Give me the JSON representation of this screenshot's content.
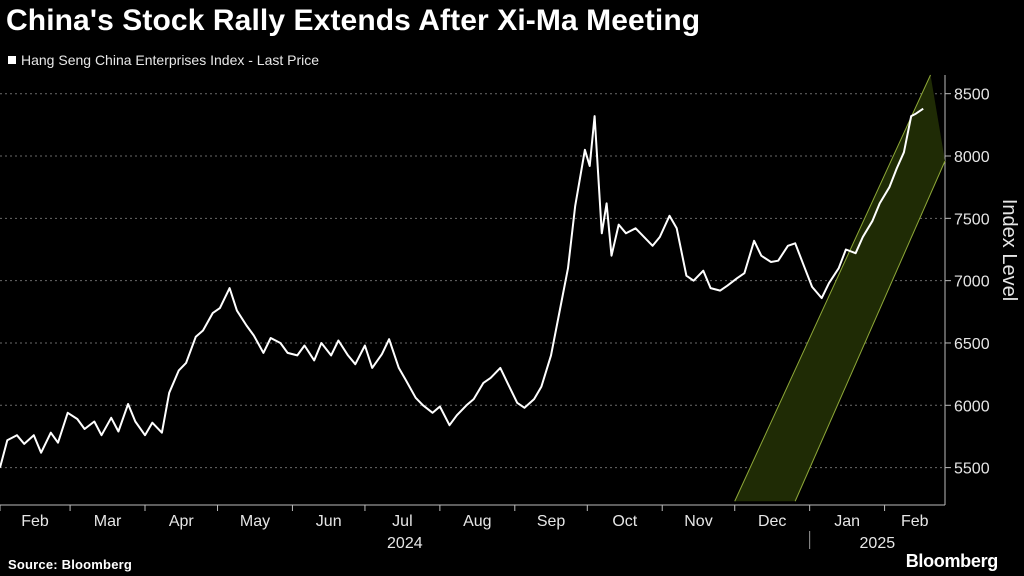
{
  "title": "China's Stock Rally Extends After Xi-Ma Meeting",
  "legend": {
    "label": "Hang Seng China Enterprises Index - Last Price"
  },
  "source": "Source: Bloomberg",
  "brand": "Bloomberg",
  "chart_data": {
    "type": "line",
    "ylabel": "Index Level",
    "ylim": [
      5200,
      8650
    ],
    "y_ticks": [
      5500,
      6000,
      6500,
      7000,
      7500,
      8000,
      8500
    ],
    "x_months": [
      "Feb",
      "Mar",
      "Apr",
      "May",
      "Jun",
      "Jul",
      "Aug",
      "Sep",
      "Oct",
      "Nov",
      "Dec",
      "Jan",
      "Feb"
    ],
    "x_years": [
      "2024",
      "2025"
    ],
    "grid": "horizontal-dashed",
    "line_color": "#ffffff",
    "channel_color": "#1f2b05",
    "channel_edge_color": "#8ea838",
    "trend_channel": {
      "upper": [
        [
          "2024-12-01",
          5230
        ],
        [
          "2025-02-20",
          8650
        ]
      ],
      "lower": [
        [
          "2024-12-26",
          5230
        ],
        [
          "2025-02-26",
          7960
        ]
      ]
    },
    "series": [
      {
        "name": "Hang Seng China Enterprises Index - Last Price",
        "points": [
          [
            "2024-02-01",
            5500
          ],
          [
            "2024-02-04",
            5720
          ],
          [
            "2024-02-08",
            5760
          ],
          [
            "2024-02-11",
            5690
          ],
          [
            "2024-02-15",
            5760
          ],
          [
            "2024-02-18",
            5620
          ],
          [
            "2024-02-22",
            5780
          ],
          [
            "2024-02-25",
            5700
          ],
          [
            "2024-02-29",
            5940
          ],
          [
            "2024-03-04",
            5890
          ],
          [
            "2024-03-07",
            5810
          ],
          [
            "2024-03-11",
            5870
          ],
          [
            "2024-03-14",
            5760
          ],
          [
            "2024-03-18",
            5900
          ],
          [
            "2024-03-21",
            5790
          ],
          [
            "2024-03-25",
            6010
          ],
          [
            "2024-03-28",
            5870
          ],
          [
            "2024-04-01",
            5760
          ],
          [
            "2024-04-04",
            5860
          ],
          [
            "2024-04-08",
            5780
          ],
          [
            "2024-04-11",
            6100
          ],
          [
            "2024-04-15",
            6280
          ],
          [
            "2024-04-18",
            6340
          ],
          [
            "2024-04-22",
            6550
          ],
          [
            "2024-04-25",
            6600
          ],
          [
            "2024-04-29",
            6740
          ],
          [
            "2024-05-02",
            6780
          ],
          [
            "2024-05-06",
            6940
          ],
          [
            "2024-05-09",
            6760
          ],
          [
            "2024-05-13",
            6640
          ],
          [
            "2024-05-16",
            6560
          ],
          [
            "2024-05-20",
            6420
          ],
          [
            "2024-05-23",
            6540
          ],
          [
            "2024-05-27",
            6500
          ],
          [
            "2024-05-30",
            6420
          ],
          [
            "2024-06-03",
            6400
          ],
          [
            "2024-06-06",
            6480
          ],
          [
            "2024-06-10",
            6360
          ],
          [
            "2024-06-13",
            6500
          ],
          [
            "2024-06-17",
            6400
          ],
          [
            "2024-06-20",
            6520
          ],
          [
            "2024-06-24",
            6400
          ],
          [
            "2024-06-27",
            6330
          ],
          [
            "2024-07-01",
            6480
          ],
          [
            "2024-07-04",
            6300
          ],
          [
            "2024-07-08",
            6410
          ],
          [
            "2024-07-11",
            6530
          ],
          [
            "2024-07-15",
            6300
          ],
          [
            "2024-07-18",
            6200
          ],
          [
            "2024-07-22",
            6060
          ],
          [
            "2024-07-25",
            6000
          ],
          [
            "2024-07-29",
            5940
          ],
          [
            "2024-08-01",
            5990
          ],
          [
            "2024-08-05",
            5840
          ],
          [
            "2024-08-08",
            5920
          ],
          [
            "2024-08-12",
            6000
          ],
          [
            "2024-08-15",
            6050
          ],
          [
            "2024-08-19",
            6180
          ],
          [
            "2024-08-22",
            6220
          ],
          [
            "2024-08-26",
            6300
          ],
          [
            "2024-08-29",
            6180
          ],
          [
            "2024-09-02",
            6020
          ],
          [
            "2024-09-05",
            5980
          ],
          [
            "2024-09-09",
            6050
          ],
          [
            "2024-09-12",
            6150
          ],
          [
            "2024-09-16",
            6400
          ],
          [
            "2024-09-19",
            6700
          ],
          [
            "2024-09-23",
            7100
          ],
          [
            "2024-09-26",
            7600
          ],
          [
            "2024-09-30",
            8050
          ],
          [
            "2024-10-02",
            7920
          ],
          [
            "2024-10-04",
            8320
          ],
          [
            "2024-10-07",
            7380
          ],
          [
            "2024-10-09",
            7620
          ],
          [
            "2024-10-11",
            7200
          ],
          [
            "2024-10-14",
            7450
          ],
          [
            "2024-10-17",
            7380
          ],
          [
            "2024-10-21",
            7420
          ],
          [
            "2024-10-24",
            7360
          ],
          [
            "2024-10-28",
            7280
          ],
          [
            "2024-10-31",
            7350
          ],
          [
            "2024-11-04",
            7520
          ],
          [
            "2024-11-07",
            7420
          ],
          [
            "2024-11-11",
            7040
          ],
          [
            "2024-11-14",
            7000
          ],
          [
            "2024-11-18",
            7080
          ],
          [
            "2024-11-21",
            6940
          ],
          [
            "2024-11-25",
            6920
          ],
          [
            "2024-11-28",
            6960
          ],
          [
            "2024-12-02",
            7020
          ],
          [
            "2024-12-05",
            7060
          ],
          [
            "2024-12-09",
            7320
          ],
          [
            "2024-12-12",
            7200
          ],
          [
            "2024-12-16",
            7150
          ],
          [
            "2024-12-19",
            7160
          ],
          [
            "2024-12-23",
            7280
          ],
          [
            "2024-12-26",
            7300
          ],
          [
            "2024-12-30",
            7100
          ],
          [
            "2025-01-02",
            6950
          ],
          [
            "2025-01-06",
            6860
          ],
          [
            "2025-01-09",
            6980
          ],
          [
            "2025-01-13",
            7100
          ],
          [
            "2025-01-16",
            7250
          ],
          [
            "2025-01-20",
            7220
          ],
          [
            "2025-01-23",
            7350
          ],
          [
            "2025-01-27",
            7480
          ],
          [
            "2025-01-30",
            7620
          ],
          [
            "2025-02-03",
            7750
          ],
          [
            "2025-02-06",
            7900
          ],
          [
            "2025-02-09",
            8030
          ],
          [
            "2025-02-12",
            8320
          ],
          [
            "2025-02-14",
            8340
          ],
          [
            "2025-02-17",
            8380
          ]
        ]
      }
    ]
  }
}
